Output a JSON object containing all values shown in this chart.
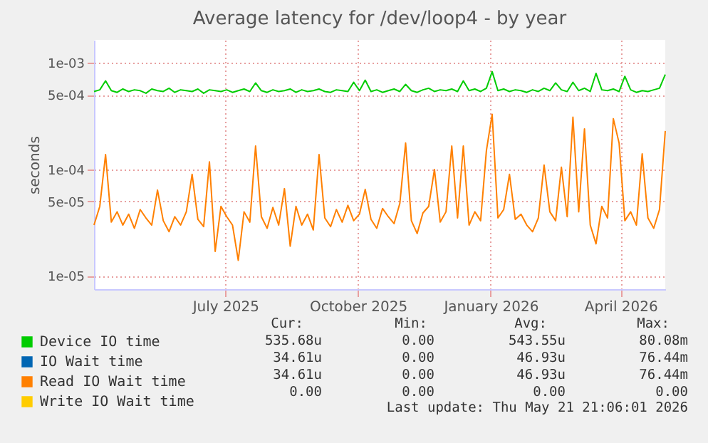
{
  "chart_data": {
    "type": "line",
    "title": "Average latency for /dev/loop4 - by year",
    "ylabel": "seconds",
    "log": true,
    "grid": true,
    "legend": "bottom left",
    "xlim": [
      "2025-04-01",
      "2026-05-02"
    ],
    "xticks": [
      {
        "value": "2025-07-01",
        "label": "July 2025"
      },
      {
        "value": "2025-10-01",
        "label": "October 2025"
      },
      {
        "value": "2026-01-01",
        "label": "January 2026"
      },
      {
        "value": "2026-04-01",
        "label": "April 2026"
      }
    ],
    "ylim": [
      7.5e-06,
      0.00165
    ],
    "yticks": [
      {
        "value": 1e-05,
        "label": "1e-05"
      },
      {
        "value": 5e-05,
        "label": "5e-05"
      },
      {
        "value": 0.0001,
        "label": "1e-04"
      },
      {
        "value": 0.0005,
        "label": "5e-04"
      },
      {
        "value": 0.001,
        "label": "1e-03"
      }
    ],
    "x": [
      "2025-04-01",
      "2025-04-05",
      "2025-04-09",
      "2025-04-13",
      "2025-04-17",
      "2025-04-21",
      "2025-04-25",
      "2025-04-29",
      "2025-05-03",
      "2025-05-07",
      "2025-05-11",
      "2025-05-15",
      "2025-05-19",
      "2025-05-23",
      "2025-05-27",
      "2025-05-31",
      "2025-06-04",
      "2025-06-08",
      "2025-06-12",
      "2025-06-16",
      "2025-06-20",
      "2025-06-24",
      "2025-06-28",
      "2025-07-02",
      "2025-07-06",
      "2025-07-10",
      "2025-07-14",
      "2025-07-18",
      "2025-07-22",
      "2025-07-26",
      "2025-07-30",
      "2025-08-03",
      "2025-08-07",
      "2025-08-11",
      "2025-08-15",
      "2025-08-19",
      "2025-08-23",
      "2025-08-27",
      "2025-08-31",
      "2025-09-04",
      "2025-09-08",
      "2025-09-12",
      "2025-09-16",
      "2025-09-20",
      "2025-09-24",
      "2025-09-28",
      "2025-10-02",
      "2025-10-06",
      "2025-10-10",
      "2025-10-14",
      "2025-10-18",
      "2025-10-22",
      "2025-10-26",
      "2025-10-30",
      "2025-11-03",
      "2025-11-07",
      "2025-11-11",
      "2025-11-15",
      "2025-11-19",
      "2025-11-23",
      "2025-11-27",
      "2025-12-01",
      "2025-12-05",
      "2025-12-09",
      "2025-12-13",
      "2025-12-17",
      "2025-12-21",
      "2025-12-25",
      "2025-12-29",
      "2026-01-02",
      "2026-01-06",
      "2026-01-10",
      "2026-01-14",
      "2026-01-18",
      "2026-01-22",
      "2026-01-26",
      "2026-01-30",
      "2026-02-03",
      "2026-02-07",
      "2026-02-11",
      "2026-02-15",
      "2026-02-19",
      "2026-02-23",
      "2026-02-27",
      "2026-03-03",
      "2026-03-07",
      "2026-03-11",
      "2026-03-15",
      "2026-03-19",
      "2026-03-23",
      "2026-03-27",
      "2026-03-31",
      "2026-04-04",
      "2026-04-08",
      "2026-04-12",
      "2026-04-16",
      "2026-04-20",
      "2026-04-24",
      "2026-04-28",
      "2026-05-02"
    ],
    "series": [
      {
        "name": "Device IO time",
        "color": "#00cc00",
        "values": [
          0.00054,
          0.00056,
          0.00068,
          0.00055,
          0.00053,
          0.00057,
          0.00054,
          0.00056,
          0.00055,
          0.00052,
          0.00057,
          0.00055,
          0.00054,
          0.00058,
          0.00053,
          0.00056,
          0.00055,
          0.00054,
          0.00057,
          0.00052,
          0.00056,
          0.00055,
          0.00054,
          0.00056,
          0.00053,
          0.00055,
          0.00057,
          0.00054,
          0.00065,
          0.00055,
          0.00053,
          0.00056,
          0.00054,
          0.00055,
          0.00057,
          0.00053,
          0.00056,
          0.00054,
          0.00055,
          0.00057,
          0.00054,
          0.00053,
          0.00056,
          0.00055,
          0.00054,
          0.00066,
          0.00055,
          0.00069,
          0.00054,
          0.00056,
          0.00053,
          0.00055,
          0.00057,
          0.00054,
          0.00063,
          0.00055,
          0.00053,
          0.00056,
          0.00058,
          0.00054,
          0.00056,
          0.00055,
          0.00057,
          0.00054,
          0.00068,
          0.00055,
          0.00057,
          0.00054,
          0.00058,
          0.00083,
          0.00055,
          0.00057,
          0.00054,
          0.00056,
          0.00055,
          0.00053,
          0.00056,
          0.00054,
          0.00058,
          0.00055,
          0.00065,
          0.00056,
          0.00054,
          0.00066,
          0.00055,
          0.00058,
          0.00054,
          0.0008,
          0.00056,
          0.00055,
          0.00057,
          0.00054,
          0.00075,
          0.00056,
          0.00053,
          0.00055,
          0.00054,
          0.00056,
          0.00058,
          0.00078
        ]
      },
      {
        "name": "IO Wait time",
        "color": "#0066b3",
        "values": [
          null,
          null,
          null,
          null,
          null,
          null,
          null,
          null,
          null,
          null,
          null,
          null,
          null,
          null,
          null,
          null,
          null,
          null,
          null,
          null,
          null,
          null,
          null,
          null,
          null,
          null,
          null,
          null,
          null,
          null,
          null,
          null,
          null,
          null,
          null,
          null,
          null,
          null,
          null,
          null,
          null,
          null,
          null,
          null,
          null,
          null,
          null,
          null,
          null,
          null,
          null,
          null,
          null,
          null,
          null,
          null,
          null,
          null,
          null,
          null,
          null,
          null,
          null,
          null,
          null,
          null,
          null,
          null,
          null,
          null,
          null,
          null,
          null,
          null,
          null,
          null,
          null,
          null,
          null,
          null,
          null,
          null,
          null,
          null,
          null,
          null,
          null,
          null,
          null,
          null,
          null,
          null,
          null,
          null,
          null,
          null,
          null,
          null,
          null,
          null
        ]
      },
      {
        "name": "Read IO Wait time",
        "color": "#ff8000",
        "values": [
          3e-05,
          4.5e-05,
          0.000138,
          3.2e-05,
          4e-05,
          3e-05,
          3.8e-05,
          2.8e-05,
          4.2e-05,
          3.5e-05,
          3e-05,
          6.4e-05,
          3.3e-05,
          2.6e-05,
          3.6e-05,
          3e-05,
          4e-05,
          9e-05,
          3.4e-05,
          2.9e-05,
          0.000118,
          1.7e-05,
          4.5e-05,
          3.6e-05,
          3e-05,
          1.4e-05,
          4e-05,
          3.2e-05,
          0.000166,
          3.6e-05,
          2.8e-05,
          4.4e-05,
          3e-05,
          6.6e-05,
          1.9e-05,
          4.5e-05,
          3e-05,
          3.8e-05,
          2.7e-05,
          0.000138,
          3.5e-05,
          2.9e-05,
          4.2e-05,
          3.2e-05,
          4.6e-05,
          3.3e-05,
          3.8e-05,
          6.5e-05,
          3.4e-05,
          2.8e-05,
          4.3e-05,
          3.6e-05,
          3.1e-05,
          4.8e-05,
          0.000177,
          3.3e-05,
          2.5e-05,
          3.9e-05,
          4.5e-05,
          0.0001,
          3.2e-05,
          4e-05,
          0.000166,
          3.5e-05,
          0.000166,
          3e-05,
          4e-05,
          3.3e-05,
          0.00015,
          0.00033,
          3.5e-05,
          4.2e-05,
          9e-05,
          3.4e-05,
          3.8e-05,
          3e-05,
          2.6e-05,
          3.5e-05,
          0.00011,
          4e-05,
          3.3e-05,
          0.000105,
          3.6e-05,
          0.00031,
          4e-05,
          0.00024,
          3e-05,
          2e-05,
          4.5e-05,
          3.5e-05,
          0.0003,
          0.000177,
          3.3e-05,
          4e-05,
          3e-05,
          0.00014,
          3.5e-05,
          2.8e-05,
          4.2e-05,
          0.00023
        ]
      },
      {
        "name": "Write IO Wait time",
        "color": "#ffcc00",
        "values": [
          null,
          null,
          null,
          null,
          null,
          null,
          null,
          null,
          null,
          null,
          null,
          null,
          null,
          null,
          null,
          null,
          null,
          null,
          null,
          null,
          null,
          null,
          null,
          null,
          null,
          null,
          null,
          null,
          null,
          null,
          null,
          null,
          null,
          null,
          null,
          null,
          null,
          null,
          null,
          null,
          null,
          null,
          null,
          null,
          null,
          null,
          null,
          null,
          null,
          null,
          null,
          null,
          null,
          null,
          null,
          null,
          null,
          null,
          null,
          null,
          null,
          null,
          null,
          null,
          null,
          null,
          null,
          null,
          null,
          null,
          null,
          null,
          null,
          null,
          null,
          null,
          null,
          null,
          null,
          null,
          null,
          null,
          null,
          null,
          null,
          null,
          null,
          null,
          null,
          null,
          null,
          null,
          null,
          null,
          null,
          null,
          null,
          null,
          null,
          null
        ]
      }
    ],
    "annotations": [
      "Cur:",
      "Min:",
      "Avg:",
      "Max:",
      "535.68u",
      "0.00",
      "543.55u",
      "80.08m",
      "34.61u",
      "0.00",
      "46.93u",
      "76.44m",
      "34.61u",
      "0.00",
      "46.93u",
      "76.44m",
      "0.00",
      "0.00",
      "0.00",
      "0.00",
      "Last update: Thu May 21 21:06:01 2026"
    ]
  }
}
